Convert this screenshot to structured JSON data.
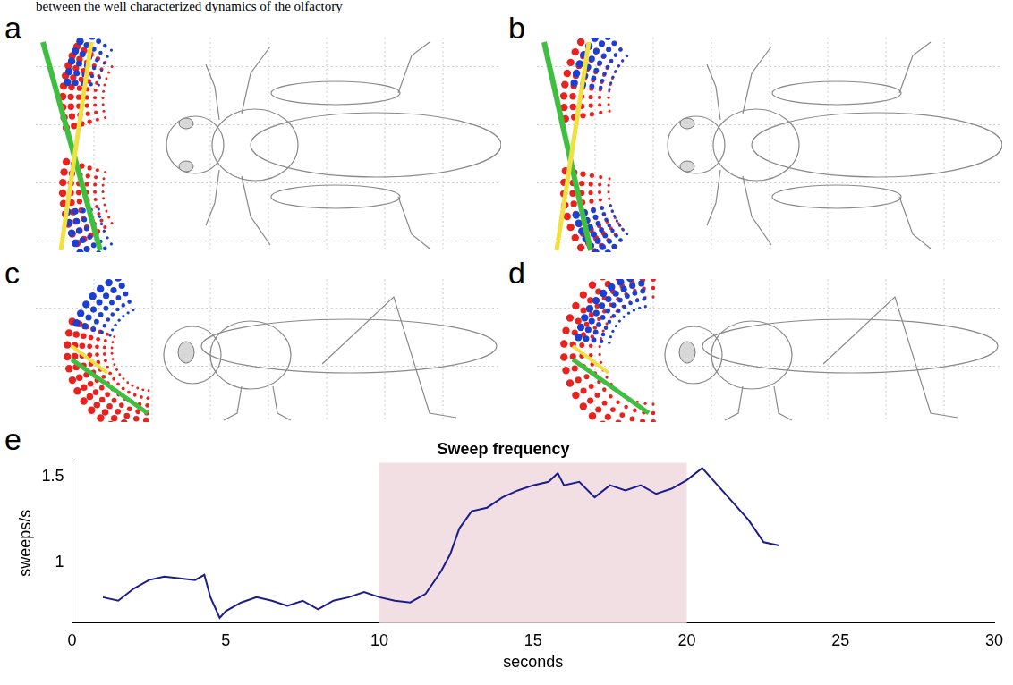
{
  "text_fragment": "between the well characterized dynamics of the olfactory",
  "panels": [
    {
      "label": "a"
    },
    {
      "label": "b"
    },
    {
      "label": "c"
    },
    {
      "label": "d"
    }
  ],
  "chart_data": {
    "label": "e",
    "type": "line",
    "title": "Sweep frequency",
    "x_label": "seconds",
    "y_label": "sweeps/s",
    "color": "#1c1c8c",
    "x": [
      1,
      1.5,
      2,
      2.5,
      3,
      3.5,
      4,
      4.3,
      4.5,
      4.8,
      5,
      5.5,
      6,
      6.5,
      7,
      7.5,
      8,
      8.5,
      9,
      9.5,
      10,
      10.5,
      11,
      11.5,
      12,
      12.3,
      12.6,
      13,
      13.5,
      14,
      14.5,
      15,
      15.5,
      15.8,
      16,
      16.5,
      17,
      17.5,
      18,
      18.5,
      19,
      19.5,
      20,
      20.5,
      21,
      21.5,
      22,
      22.5,
      23
    ],
    "values": [
      0.8,
      0.78,
      0.85,
      0.9,
      0.92,
      0.91,
      0.9,
      0.93,
      0.8,
      0.68,
      0.72,
      0.77,
      0.8,
      0.78,
      0.75,
      0.78,
      0.73,
      0.78,
      0.8,
      0.83,
      0.8,
      0.78,
      0.77,
      0.82,
      0.95,
      1.05,
      1.2,
      1.3,
      1.32,
      1.38,
      1.42,
      1.45,
      1.47,
      1.52,
      1.45,
      1.47,
      1.38,
      1.45,
      1.42,
      1.45,
      1.4,
      1.43,
      1.48,
      1.55,
      1.45,
      1.35,
      1.25,
      1.12,
      1.1
    ],
    "xlim": [
      0,
      30
    ],
    "xticks": [
      0,
      5,
      10,
      15,
      20,
      25,
      30
    ],
    "ylim": [
      0.65,
      1.58
    ],
    "yticks": [
      1,
      1.5
    ],
    "shaded_region": {
      "x": [
        10,
        20
      ],
      "color": "#f2dfe3"
    },
    "grid": false
  }
}
